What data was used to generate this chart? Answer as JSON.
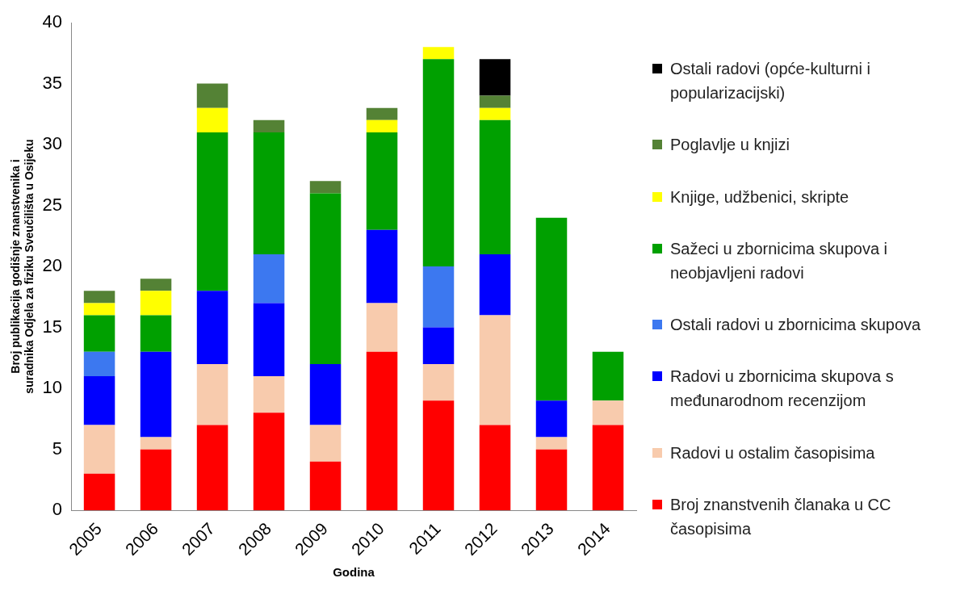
{
  "chart_data": {
    "type": "bar",
    "stacked": true,
    "xlabel": "Godina",
    "ylabel": "Broj publikacija godišnje znanstvenika i suradnika Odjela za fiziku Sveučilišta u Osijeku",
    "categories": [
      "2005",
      "2006",
      "2007",
      "2008",
      "2009",
      "2010",
      "2011",
      "2012",
      "2013",
      "2014"
    ],
    "series": [
      {
        "name": "Broj znanstvenih članaka u CC časopisima",
        "color": "#ff0000",
        "values": [
          3,
          5,
          7,
          8,
          4,
          13,
          9,
          7,
          5,
          7
        ]
      },
      {
        "name": "Radovi u ostalim časopisima",
        "color": "#f8cbad",
        "values": [
          4,
          1,
          5,
          3,
          3,
          4,
          3,
          9,
          1,
          2
        ]
      },
      {
        "name": "Radovi u zbornicima skupova s međunarodnom recenzijom",
        "color": "#0000ff",
        "values": [
          4,
          7,
          6,
          6,
          5,
          6,
          3,
          5,
          3,
          0
        ]
      },
      {
        "name": "Ostali radovi u zbornicima skupova",
        "color": "#3c78f0",
        "values": [
          2,
          0,
          0,
          4,
          0,
          0,
          5,
          0,
          0,
          0
        ]
      },
      {
        "name": "Sažeci u zbornicima skupova i neobjavljeni radovi",
        "color": "#00a000",
        "values": [
          3,
          3,
          13,
          10,
          14,
          8,
          17,
          11,
          15,
          4
        ]
      },
      {
        "name": "Knjige, udžbenici, skripte",
        "color": "#ffff00",
        "values": [
          1,
          2,
          2,
          0,
          0,
          1,
          1,
          1,
          0,
          0
        ]
      },
      {
        "name": "Poglavlje u knjizi",
        "color": "#548235",
        "values": [
          1,
          1,
          2,
          1,
          1,
          1,
          0,
          1,
          0,
          0
        ]
      },
      {
        "name": "Ostali radovi (opće-kulturni i popularizacijski)",
        "color": "#000000",
        "values": [
          0,
          0,
          0,
          0,
          0,
          0,
          0,
          3,
          0,
          0
        ]
      }
    ],
    "ylim": [
      0,
      40
    ],
    "yticks": [
      0,
      5,
      10,
      15,
      20,
      25,
      30,
      35,
      40
    ],
    "grid": false,
    "legend": "right"
  }
}
